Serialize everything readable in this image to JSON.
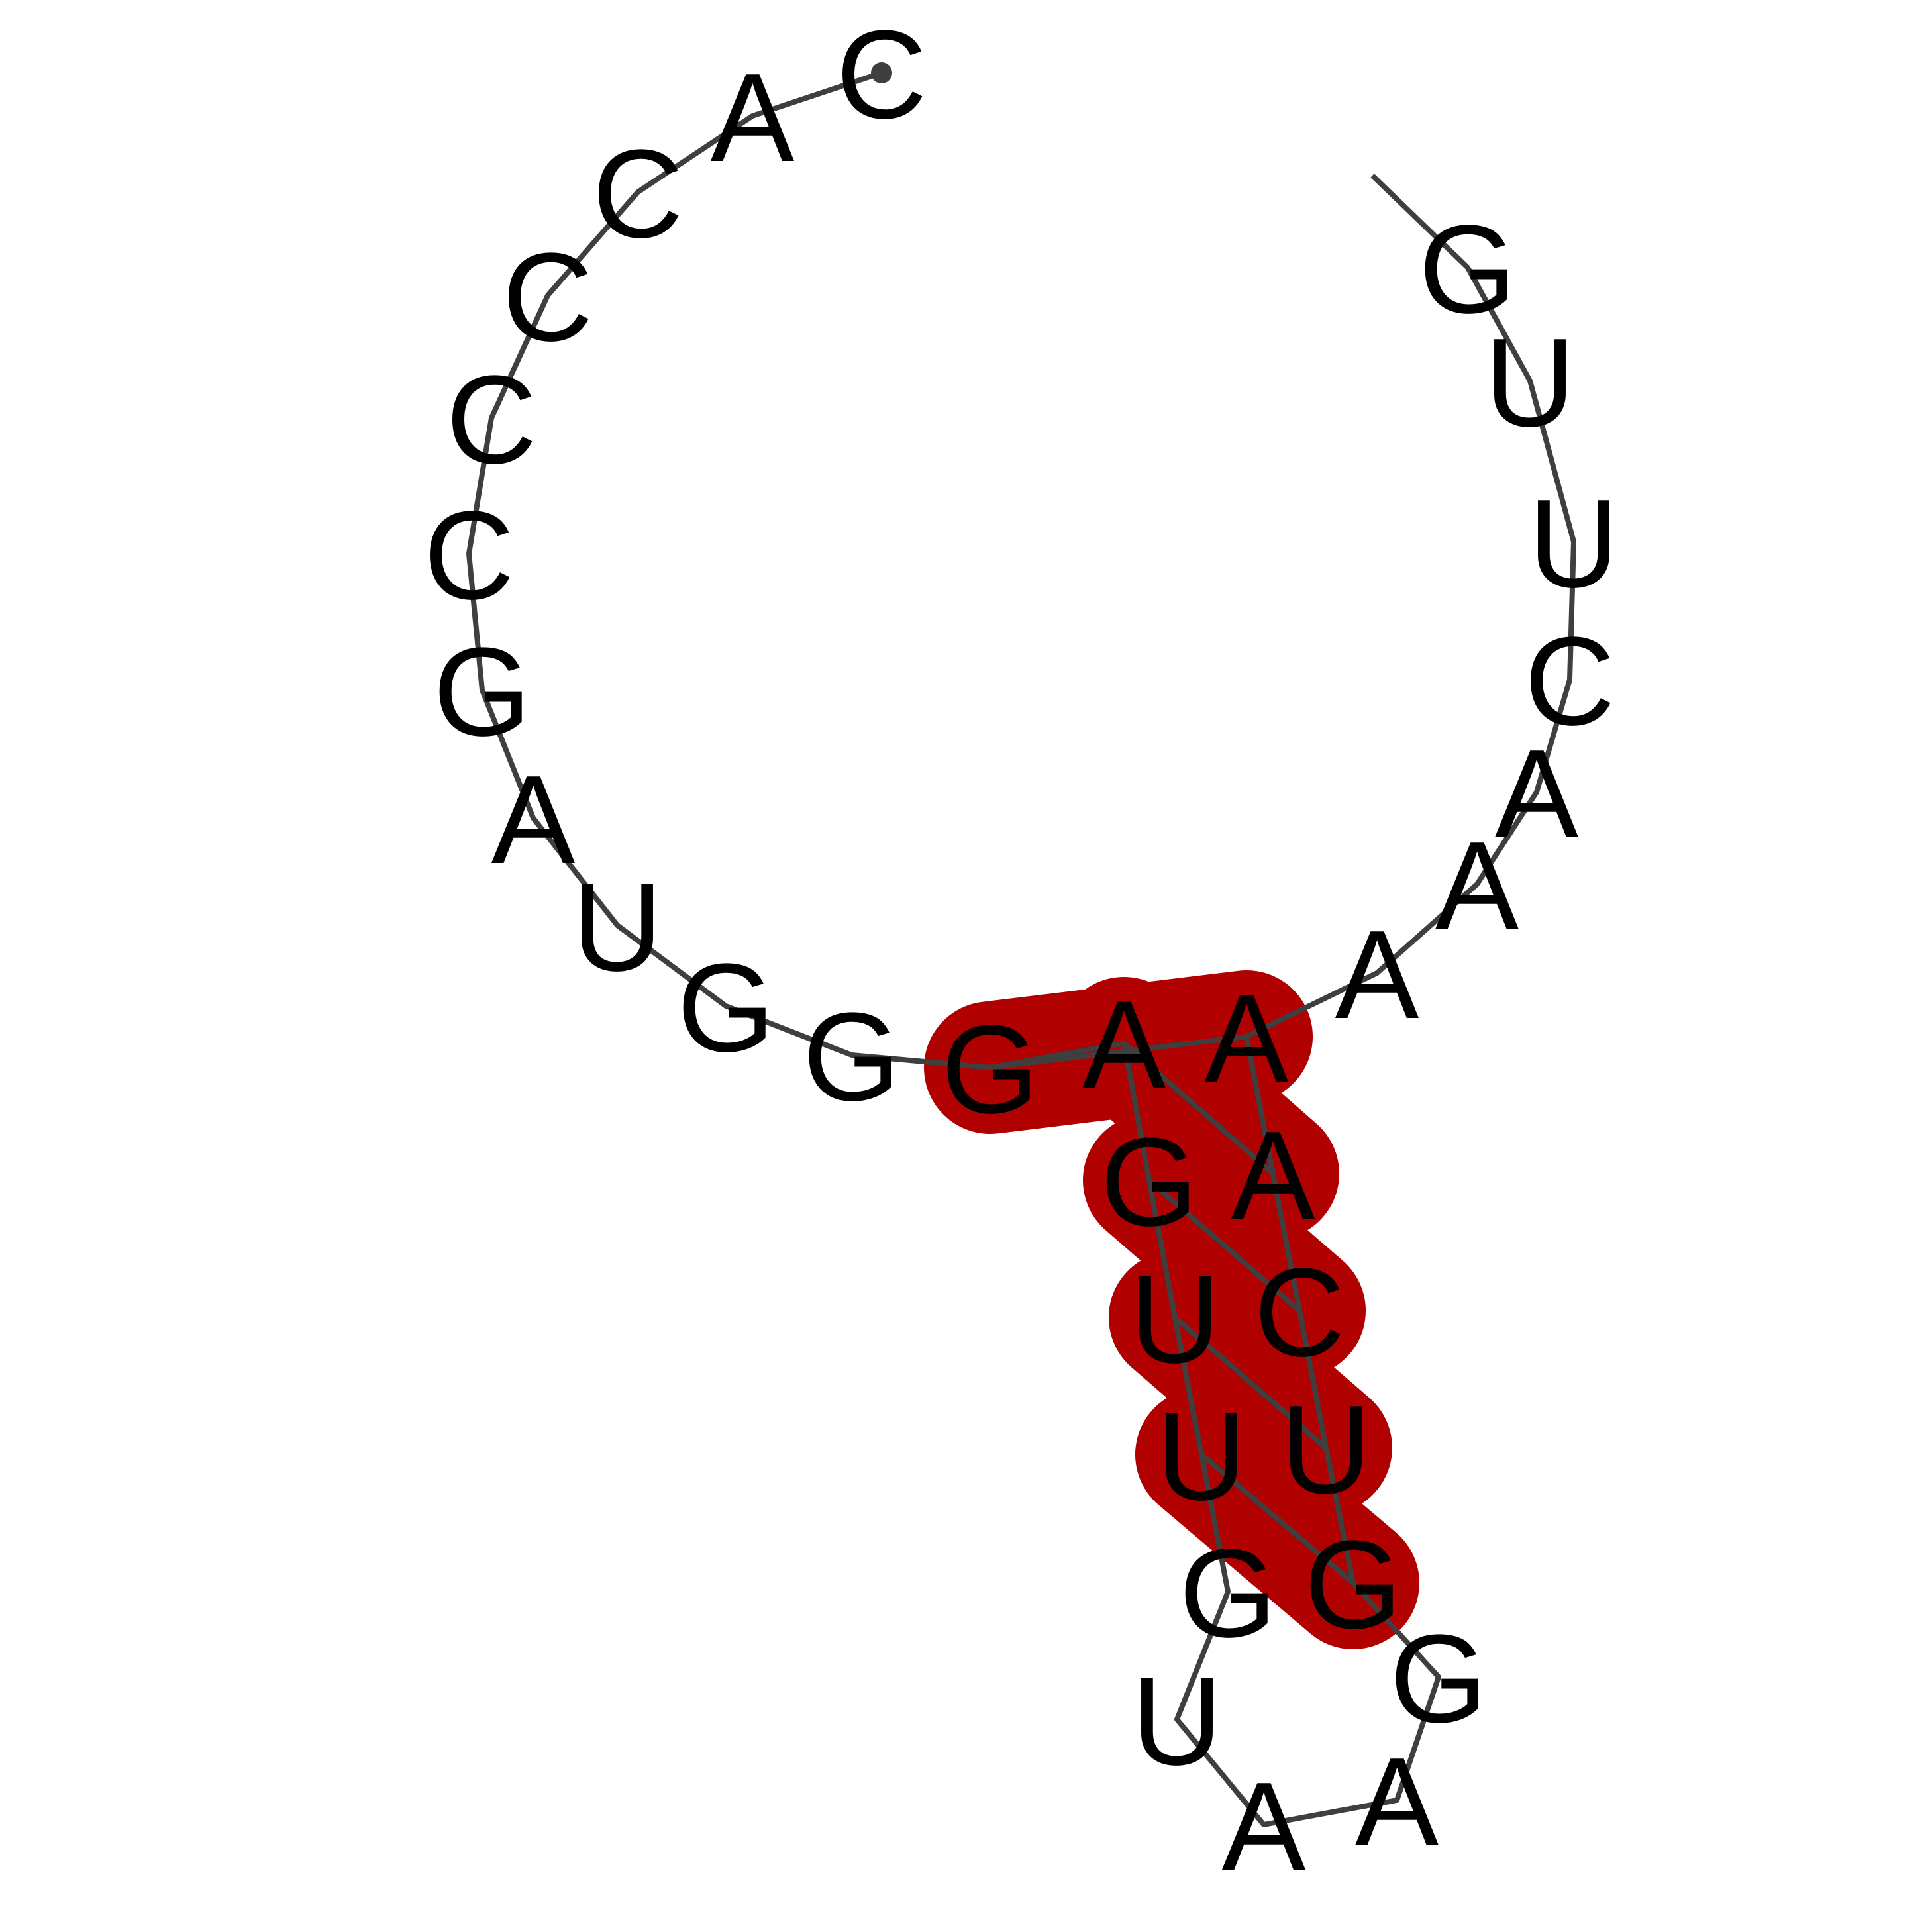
{
  "sequence": [
    "C",
    "A",
    "C",
    "C",
    "C",
    "C",
    "G",
    "A",
    "U",
    "G",
    "G",
    "G",
    "A",
    "G",
    "U",
    "U",
    "G",
    "U",
    "A",
    "A",
    "G",
    "G",
    "U",
    "C",
    "A",
    "A",
    "A",
    "A",
    "A",
    "C",
    "U",
    "U",
    "G"
  ],
  "base_pairs": [
    [
      12,
      24
    ],
    [
      13,
      23
    ],
    [
      14,
      22
    ],
    [
      15,
      21
    ],
    [
      16,
      20
    ]
  ],
  "colors": {
    "backbone": "#3f3f3f",
    "pair_highlight": "#b00000",
    "text": "#000000",
    "background": "#ffffff"
  }
}
